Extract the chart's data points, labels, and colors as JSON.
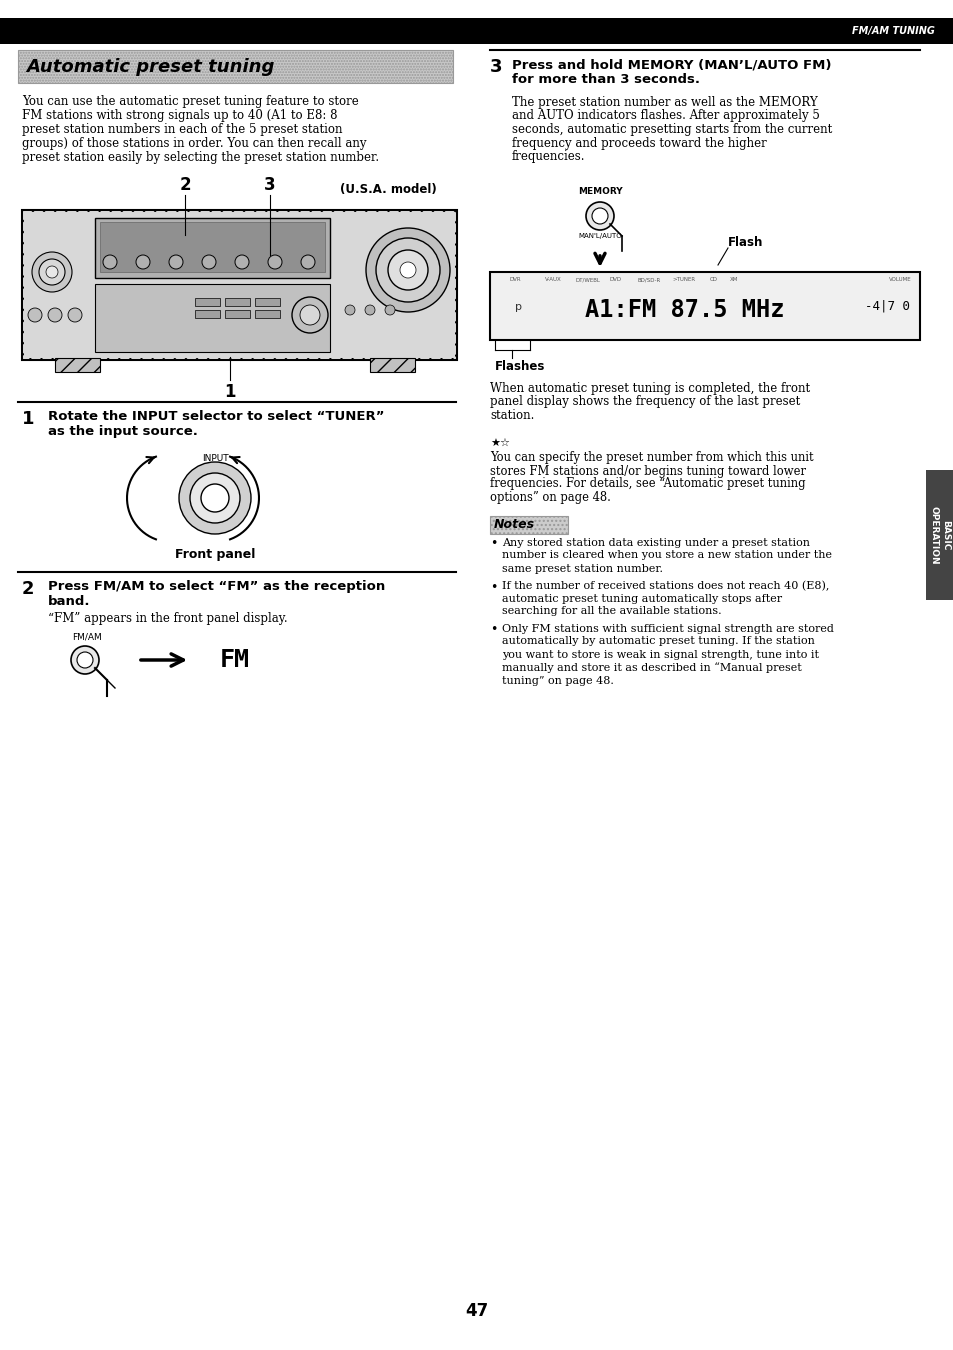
{
  "page_number": "47",
  "header_text": "FM/AM TUNING",
  "header_bg": "#000000",
  "header_text_color": "#ffffff",
  "page_bg": "#ffffff",
  "section_title": "Automatic preset tuning",
  "section_title_bg": "#cccccc",
  "intro_text": "You can use the automatic preset tuning feature to store\nFM stations with strong signals up to 40 (A1 to E8: 8\npreset station numbers in each of the 5 preset station\ngroups) of those stations in order. You can then recall any\npreset station easily by selecting the preset station number.",
  "step1_bold": "Rotate the INPUT selector to select “TUNER”\nas the input source.",
  "step1_sub": "Front panel",
  "step2_bold": "Press FM/AM to select “FM” as the reception\nband.",
  "step2_sub": "“FM” appears in the front panel display.",
  "step3_bold_line1": "Press and hold MEMORY (MAN’L/AUTO FM)",
  "step3_bold_line2": "for more than 3 seconds.",
  "step3_text": "The preset station number as well as the MEMORY\nand AUTO indicators flashes. After approximately 5\nseconds, automatic presetting starts from the current\nfrequency and proceeds toward the higher\nfrequencies.",
  "memory_label": "MEMORY",
  "manl_label": "MAN'L/AUTO",
  "flash_label": "Flash",
  "flashes_label": "Flashes",
  "after_text": "When automatic preset tuning is completed, the front\npanel display shows the frequency of the last preset\nstation.",
  "hint_text": "You can specify the preset number from which this unit\nstores FM stations and/or begins tuning toward lower\nfrequencies. For details, see “Automatic preset tuning\noptions” on page 48.",
  "notes_title": "Notes",
  "notes": [
    "Any stored station data existing under a preset station\nnumber is cleared when you store a new station under the\nsame preset station number.",
    "If the number of received stations does not reach 40 (E8),\nautomatic preset tuning automatically stops after\nsearching for all the available stations.",
    "Only FM stations with sufficient signal strength are stored\nautomatically by automatic preset tuning. If the station\nyou want to store is weak in signal strength, tune into it\nmanually and store it as described in “Manual preset\ntuning” on page 48."
  ],
  "side_tab_text": "BASIC\nOPERATION",
  "side_tab_bg": "#444444",
  "side_tab_text_color": "#ffffff",
  "usa_model_text": "(U.S.A. model)",
  "display_labels": [
    "DVR",
    "V-AUX",
    "DT/WEBL",
    "DVD",
    "BD/SD-R",
    ">TUNER",
    "CD",
    "XM"
  ],
  "display_text": "A1:FM 87.5 MHz",
  "display_right": "-4|7 0"
}
